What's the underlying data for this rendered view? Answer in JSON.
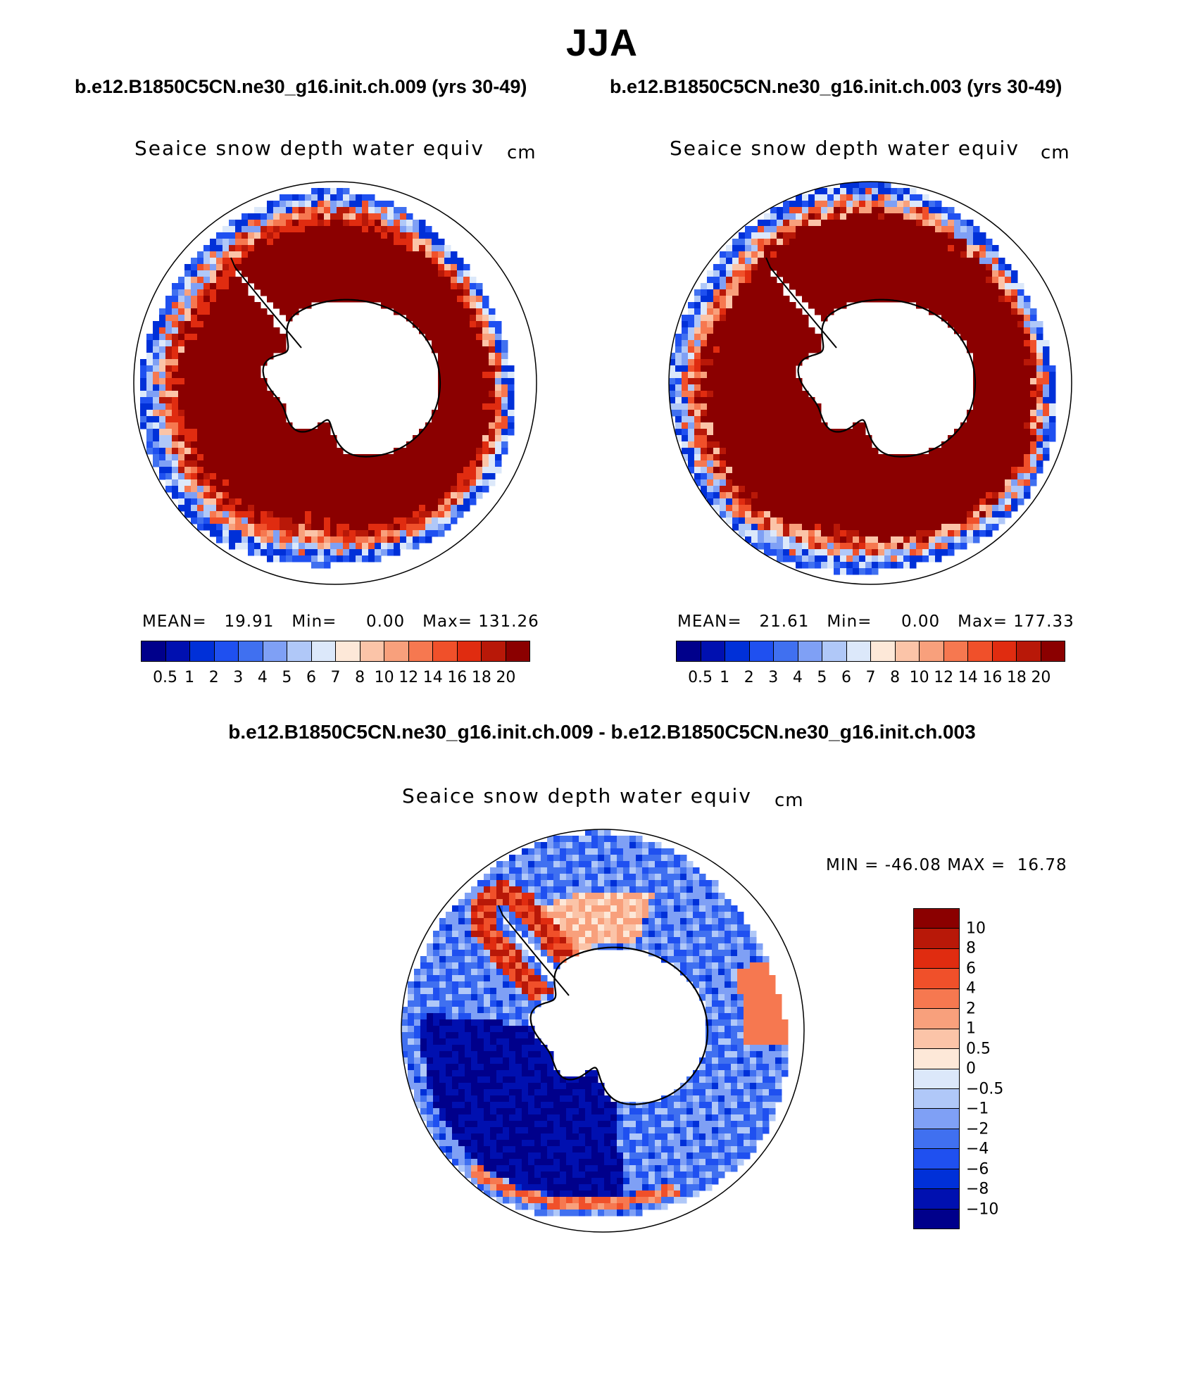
{
  "figure": {
    "title": "JJA",
    "left_case": "b.e12.B1850C5CN.ne30_g16.init.ch.009 (yrs 30-49)",
    "right_case": "b.e12.B1850C5CN.ne30_g16.init.ch.003 (yrs 30-49)",
    "diff_title": "b.e12.B1850C5CN.ne30_g16.init.ch.009 - b.e12.B1850C5CN.ne30_g16.init.ch.003"
  },
  "colors": {
    "abs_palette": [
      "#00008b",
      "#0010b0",
      "#0030d8",
      "#1f50f0",
      "#4070f0",
      "#7fa0f5",
      "#b0c8f8",
      "#dce8fa",
      "#fde8d8",
      "#fbc4a8",
      "#f8a07c",
      "#f67850",
      "#f0502a",
      "#e02c10",
      "#b81808",
      "#8b0000"
    ],
    "diff_palette": [
      "#8b0000",
      "#b81808",
      "#e02c10",
      "#f0502a",
      "#f67850",
      "#f8a07c",
      "#fbc4a8",
      "#fde8d8",
      "#dce8fa",
      "#b0c8f8",
      "#7fa0f5",
      "#4070f0",
      "#1f50f0",
      "#0030d8",
      "#0010b0",
      "#00008b"
    ],
    "land": "#ffffff"
  },
  "chart_data": [
    {
      "type": "heatmap",
      "projection": "south-polar-stereographic",
      "title": "Seaice snow depth water equiv",
      "units": "cm",
      "case": "b.e12.B1850C5CN.ne30_g16.init.ch.009 (yrs 30-49)",
      "stats": {
        "mean_label": "MEAN=",
        "mean": "19.91",
        "min_label": "Min=",
        "min": "0.00",
        "max_label": "Max=",
        "max": "131.26"
      },
      "colorbar": {
        "orientation": "horizontal",
        "levels": [
          "0.5",
          "1",
          "2",
          "3",
          "4",
          "5",
          "6",
          "7",
          "8",
          "10",
          "12",
          "14",
          "16",
          "18",
          "20"
        ]
      },
      "pattern": "broad ring of values above 20 cm surrounding the continent, tapering through 8-16 cm to a thin 0.5-7 cm edge at the ice margin"
    },
    {
      "type": "heatmap",
      "projection": "south-polar-stereographic",
      "title": "Seaice snow depth water equiv",
      "units": "cm",
      "case": "b.e12.B1850C5CN.ne30_g16.init.ch.003 (yrs 30-49)",
      "stats": {
        "mean_label": "MEAN=",
        "mean": "21.61",
        "min_label": "Min=",
        "min": "0.00",
        "max_label": "Max=",
        "max": "177.33"
      },
      "colorbar": {
        "orientation": "horizontal",
        "levels": [
          "0.5",
          "1",
          "2",
          "3",
          "4",
          "5",
          "6",
          "7",
          "8",
          "10",
          "12",
          "14",
          "16",
          "18",
          "20"
        ]
      },
      "pattern": "similar ring, slightly wider with higher values"
    },
    {
      "type": "heatmap",
      "projection": "south-polar-stereographic",
      "title": "Seaice snow depth water equiv",
      "units": "cm",
      "case": "b.e12.B1850C5CN.ne30_g16.init.ch.009 - b.e12.B1850C5CN.ne30_g16.init.ch.003",
      "stats": {
        "min_label": "MIN =",
        "min": "-46.08",
        "max_label": "MAX =",
        "max": "16.78"
      },
      "colorbar": {
        "orientation": "vertical",
        "levels": [
          "10",
          "8",
          "6",
          "4",
          "2",
          "1",
          "0.5",
          "0",
          "−0.5",
          "−1",
          "−2",
          "−4",
          "−6",
          "−8",
          "−10"
        ]
      },
      "pattern": "mostly negative (blue) differences, strong deficits of -10 or lower in the Weddell sector, positive (red) bands along the Antarctic Peninsula and parts of East Antarctica coast"
    }
  ]
}
